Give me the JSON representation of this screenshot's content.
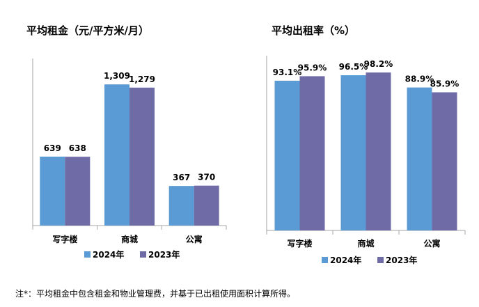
{
  "colors": {
    "series_2024": "#5B9BD5",
    "series_2023": "#6F6BA6",
    "axis": "#a6a6a6"
  },
  "chart_data": [
    {
      "type": "bar",
      "title": "平均租金（元/平方米/月）",
      "categories": [
        "写字楼",
        "商城",
        "公寓"
      ],
      "series": [
        {
          "name": "2024年",
          "values": [
            639,
            1309,
            367
          ],
          "labels": [
            "639",
            "1,309",
            "367"
          ]
        },
        {
          "name": "2023年",
          "values": [
            638,
            1279,
            370
          ],
          "labels": [
            "638",
            "1,279",
            "370"
          ]
        }
      ],
      "ylim": [
        0,
        1420
      ],
      "grid": false,
      "legend": "bottom"
    },
    {
      "type": "bar",
      "title": "平均出租率（%）",
      "categories": [
        "写字楼",
        "商城",
        "公寓"
      ],
      "series": [
        {
          "name": "2024年",
          "values": [
            93.1,
            96.5,
            88.9
          ],
          "labels": [
            "93.1%",
            "96.5%",
            "88.9%"
          ]
        },
        {
          "name": "2023年",
          "values": [
            95.9,
            98.2,
            85.9
          ],
          "labels": [
            "95.9%",
            "98.2%",
            "85.9%"
          ]
        }
      ],
      "ylim": [
        0,
        100
      ],
      "grid": false,
      "legend": "bottom"
    }
  ],
  "footnote": "注*：平均租金中包含租金和物业管理费，并基于已出租使用面积计算所得。"
}
